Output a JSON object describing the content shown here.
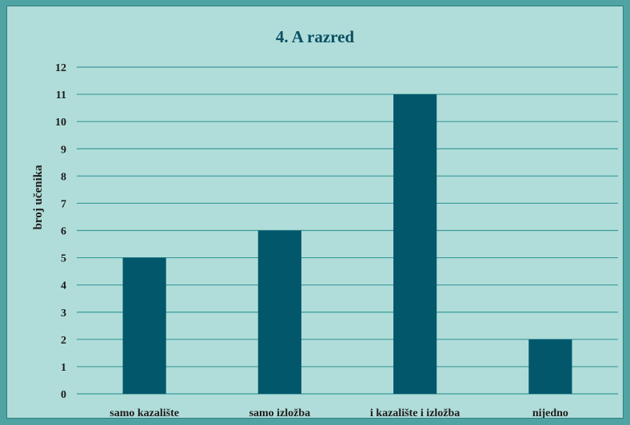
{
  "chart_data": {
    "type": "bar",
    "title": "4. A razred",
    "xlabel": "",
    "ylabel": "broj učenika",
    "categories": [
      "samo kazalište",
      "samo izložba",
      "i kazalište i izložba",
      "nijedno"
    ],
    "values": [
      5,
      6,
      11,
      2
    ],
    "ylim": [
      0,
      12
    ],
    "yticks": [
      0,
      1,
      2,
      3,
      4,
      5,
      6,
      7,
      8,
      9,
      10,
      11,
      12
    ],
    "grid": true,
    "legend": "none",
    "colors": {
      "bar": "#03576b",
      "grid": "#3a9a9c",
      "background": "#b0ddd9",
      "frame": "#4fa3a3"
    }
  }
}
